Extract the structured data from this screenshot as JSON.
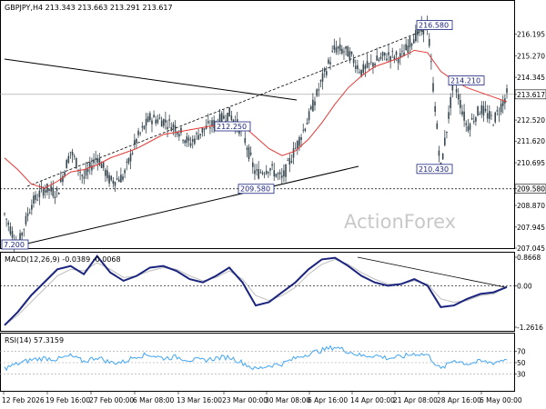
{
  "chart_data": [
    {
      "type": "line",
      "title": "GBPJPY,H4  213.343 213.663 213.291 213.617",
      "ylim": [
        207.045,
        216.99
      ],
      "x_tick_labels": [
        "12 Feb 2026",
        "19 Feb 16:00",
        "27 Feb 00:00",
        "6 Mar 08:00",
        "13 Mar 16:00",
        "23 Mar 00:00",
        "30 Mar 08:00",
        "6 Apr 16:00",
        "14 Apr 00:00",
        "21 Apr 08:00",
        "28 Apr 16:00",
        "6 May 00:00"
      ],
      "y_tick_labels": [
        "216.195",
        "215.270",
        "214.345",
        "213.617",
        "212.520",
        "211.620",
        "210.695",
        "209.580",
        "208.870",
        "207.945",
        "207.045"
      ],
      "current_price": "213.617",
      "support_line": "209.580",
      "annotations": [
        "216.580",
        "214.210",
        "213.617",
        "212.250",
        "210.430",
        "209.580",
        "7.200"
      ],
      "watermark": "ActionForex",
      "series": [
        {
          "values": [
            208.5,
            207.1,
            208.9,
            209.6,
            209.4,
            211.2,
            210.0,
            211.0,
            209.9,
            210.1,
            211.7,
            212.6,
            212.5,
            212.2,
            211.5,
            212.1,
            212.4,
            212.8,
            212.0,
            210.2,
            210.5,
            210.0,
            211.3,
            212.6,
            214.2,
            215.6,
            215.4,
            214.6,
            215.0,
            215.3,
            215.2,
            216.1,
            216.58,
            210.43,
            214.21,
            212.2,
            213.0,
            212.5,
            213.617
          ]
        },
        {
          "values": [
            210.9,
            210.4,
            209.8,
            209.6,
            209.9,
            210.3,
            210.4,
            210.6,
            210.9,
            211.1,
            211.3,
            211.6,
            211.9,
            212.0,
            212.1,
            212.2,
            212.3,
            212.4,
            212.3,
            211.8,
            211.3,
            211.0,
            211.2,
            211.7,
            212.4,
            213.2,
            213.9,
            214.4,
            214.8,
            215.0,
            215.2,
            215.5,
            215.4,
            214.6,
            214.2,
            213.9,
            213.7,
            213.5,
            213.3
          ]
        }
      ]
    },
    {
      "type": "line",
      "title": "MACD(12,26,9) -0.0389 -0.0068",
      "ylim": [
        -1.2616,
        0.8668
      ],
      "y_tick_labels": [
        "0.8668",
        "0.00",
        "-1.2616"
      ],
      "series": [
        {
          "values": [
            -1.2,
            -0.8,
            -0.3,
            0.1,
            0.5,
            0.6,
            0.35,
            0.9,
            0.4,
            0.15,
            0.3,
            0.55,
            0.6,
            0.45,
            0.2,
            0.1,
            0.3,
            0.55,
            0.1,
            -0.6,
            -0.5,
            -0.2,
            0.1,
            0.5,
            0.8,
            0.85,
            0.6,
            0.3,
            0.1,
            0.0,
            0.05,
            0.2,
            0.0,
            -0.65,
            -0.6,
            -0.4,
            -0.25,
            -0.2,
            -0.04
          ]
        },
        {
          "values": [
            -1.2,
            -0.9,
            -0.5,
            -0.1,
            0.3,
            0.5,
            0.45,
            0.7,
            0.5,
            0.25,
            0.3,
            0.45,
            0.55,
            0.5,
            0.3,
            0.15,
            0.25,
            0.45,
            0.2,
            -0.3,
            -0.45,
            -0.3,
            -0.05,
            0.35,
            0.65,
            0.8,
            0.65,
            0.4,
            0.2,
            0.05,
            0.05,
            0.15,
            0.05,
            -0.4,
            -0.5,
            -0.45,
            -0.3,
            -0.25,
            -0.01
          ]
        }
      ]
    },
    {
      "type": "line",
      "title": "RSI(14) 57.3159",
      "ylim": [
        0,
        100
      ],
      "y_tick_labels": [
        "70",
        "50",
        "30"
      ],
      "series": [
        {
          "values": [
            40,
            48,
            55,
            58,
            56,
            62,
            52,
            60,
            50,
            51,
            62,
            64,
            58,
            60,
            55,
            54,
            58,
            60,
            50,
            38,
            45,
            48,
            58,
            66,
            72,
            78,
            70,
            62,
            63,
            58,
            60,
            66,
            64,
            38,
            55,
            48,
            52,
            50,
            57
          ]
        }
      ]
    }
  ]
}
